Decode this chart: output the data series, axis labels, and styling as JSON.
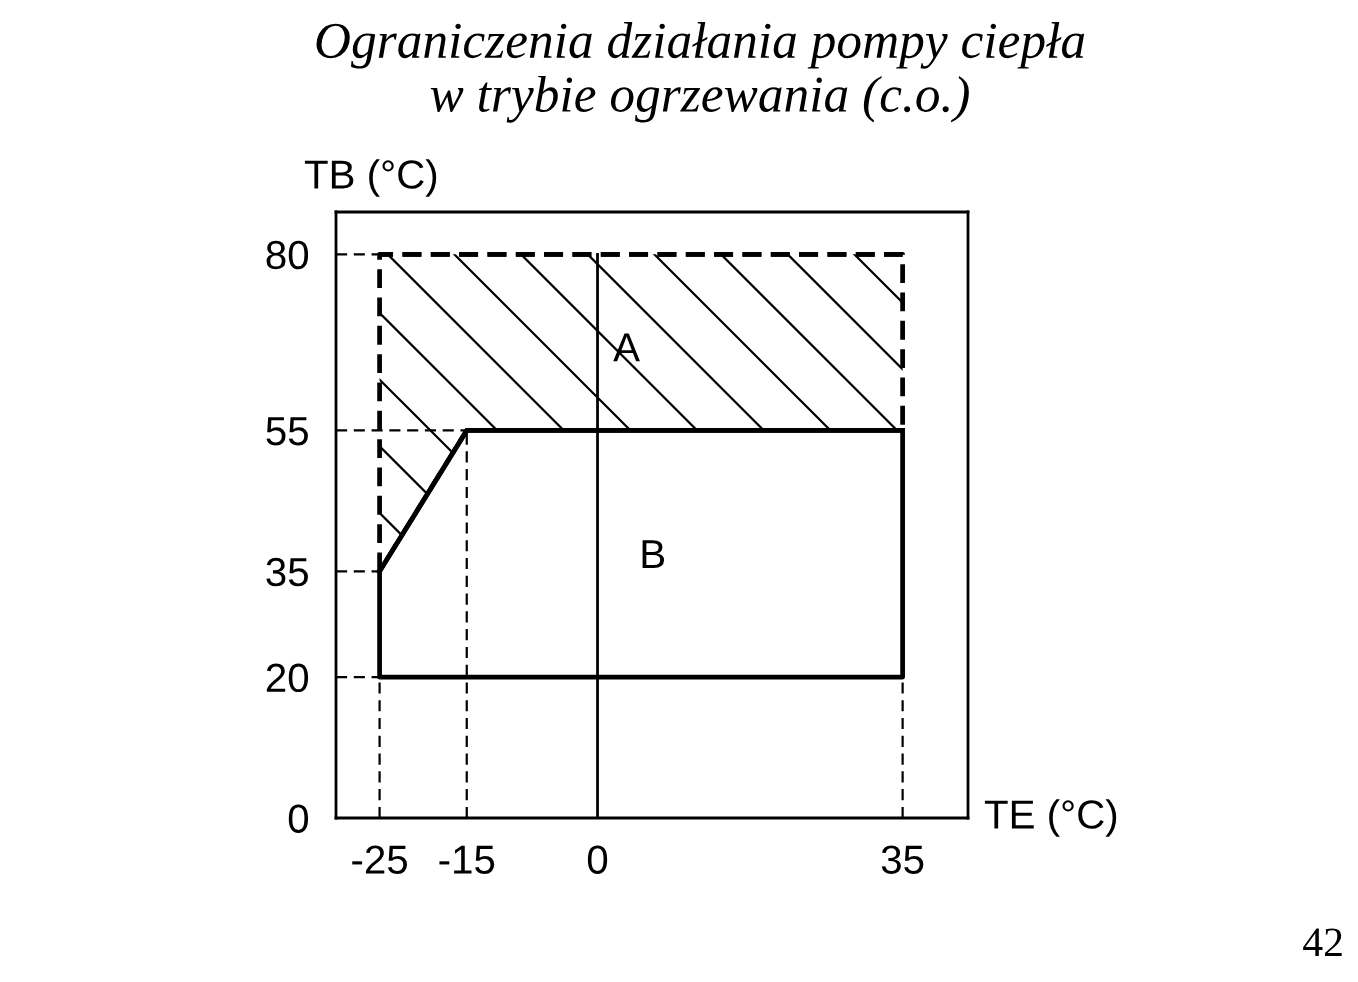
{
  "chart_data": {
    "type": "line",
    "title": "Ograniczenia działania pompy ciepła\nw trybie ogrzewania (c.o.)",
    "xlabel": "TE (°C)",
    "ylabel": "TB (°C)",
    "series": [
      {
        "name": "A",
        "color": "#000000",
        "line_style": "dashed",
        "x": [
          -25,
          -15,
          35
        ],
        "values": [
          80,
          80,
          80
        ],
        "lower": [
          35,
          55,
          55
        ],
        "upper": [
          80,
          80,
          80
        ]
      },
      {
        "name": "B",
        "color": "#000000",
        "line_style": "solid",
        "x": [
          -25,
          -15,
          35
        ],
        "values": [
          35,
          55,
          55
        ],
        "lower": [
          20,
          20,
          20
        ],
        "upper": [
          35,
          55,
          55
        ]
      },
      {
        "color": "#000000",
        "line_style": "dashed",
        "x": [
          -30,
          -25
        ],
        "values": [
          80,
          80
        ]
      },
      {
        "color": "#000000",
        "line_style": "dashed",
        "x": [
          -30,
          -15
        ],
        "values": [
          55,
          55
        ]
      },
      {
        "color": "#000000",
        "line_style": "dashed",
        "x": [
          -30,
          -25
        ],
        "values": [
          35,
          35
        ]
      },
      {
        "color": "#000000",
        "line_style": "dashed",
        "x": [
          -30,
          -25
        ],
        "values": [
          20,
          20
        ]
      },
      {
        "color": "#000000",
        "line_style": "dashed",
        "x": [
          -25,
          -25
        ],
        "values": [
          0,
          20
        ]
      },
      {
        "color": "#000000",
        "line_style": "dashed",
        "x": [
          -15,
          -15
        ],
        "values": [
          0,
          55
        ]
      },
      {
        "color": "#000000",
        "line_style": "dashed",
        "x": [
          35,
          35
        ],
        "values": [
          0,
          20
        ]
      },
      {
        "color": "#000000",
        "line_style": "solid",
        "x": [
          0,
          0
        ],
        "values": [
          0,
          80
        ]
      }
    ],
    "xlim": [
      -30,
      42.5
    ],
    "ylim": [
      0,
      86
    ],
    "xticks": [
      -25,
      -15,
      0,
      35
    ],
    "yticks": [
      0,
      20,
      35,
      55,
      80
    ],
    "annotations": [
      "42"
    ]
  }
}
